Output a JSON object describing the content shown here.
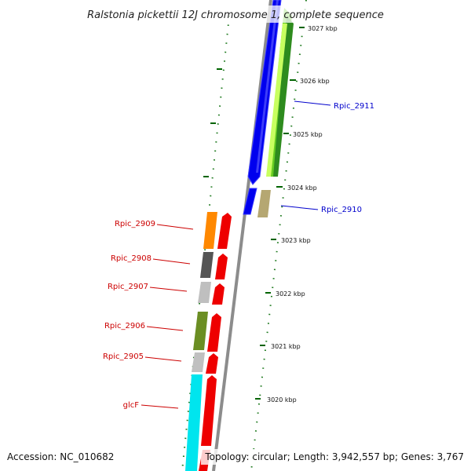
{
  "title": "Ralstonia pickettii 12J chromosome 1, complete sequence",
  "footer": {
    "accession": "Accession: NC_010682",
    "topology": "Topology: circular; Length: 3,942,557 bp; Genes: 3,767"
  },
  "colors": {
    "backbone": "#8c8c8c",
    "tick": "#006400",
    "forward_label": "#0000cc",
    "reverse_label": "#cc0000",
    "forward_gene": "#0000ee",
    "reverse_gene": "#ee0000"
  },
  "ticks": [
    "3027 kbp",
    "3026 kbp",
    "3025 kbp",
    "3024 kbp",
    "3023 kbp",
    "3022 kbp",
    "3021 kbp",
    "3020 kbp"
  ],
  "forward_labels": [
    "Rpic_2911",
    "Rpic_2910"
  ],
  "reverse_labels": [
    "Rpic_2909",
    "Rpic_2908",
    "Rpic_2907",
    "Rpic_2906",
    "Rpic_2905",
    "glcF"
  ]
}
